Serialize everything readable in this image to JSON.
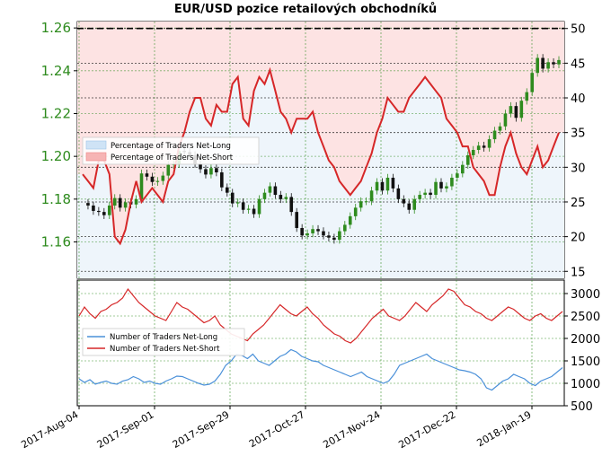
{
  "chart_data": [
    {
      "type": "candlestick",
      "title": "EUR/USD pozice retailových obchodníků",
      "x_ticks": [
        "2017-Aug-04",
        "2017-Sep-01",
        "2017-Sep-29",
        "2017-Oct-27",
        "2017-Nov-24",
        "2017-Dec-22",
        "2018-Jan-19"
      ],
      "y_left": {
        "ticks": [
          "1.16",
          "1.18",
          "1.20",
          "1.22",
          "1.24",
          "1.26"
        ],
        "range": [
          1.143,
          1.263
        ]
      },
      "y_right": {
        "ticks": [
          "15",
          "20",
          "25",
          "30",
          "35",
          "40",
          "45",
          "50"
        ],
        "range": [
          14,
          51
        ]
      },
      "grid": true,
      "reference_line": {
        "axis": "right",
        "value": 50,
        "style": "dashed"
      },
      "legend": {
        "placement": "center-left",
        "entries": [
          {
            "label": "Percentage of Traders Net-Long",
            "color": "#cfe3f6"
          },
          {
            "label": "Percentage of Traders Net-Short",
            "color": "#f6b4b4"
          }
        ]
      },
      "series": [
        {
          "name": "EUR/USD",
          "axis": "left",
          "close": [
            1.1782,
            1.177,
            1.1745,
            1.174,
            1.1725,
            1.177,
            1.1805,
            1.176,
            1.1785,
            1.1775,
            1.18,
            1.192,
            1.1905,
            1.188,
            1.1885,
            1.191,
            1.196,
            1.1965,
            1.2025,
            1.202,
            1.2005,
            1.1965,
            1.194,
            1.1915,
            1.1945,
            1.1925,
            1.1855,
            1.183,
            1.178,
            1.1785,
            1.175,
            1.1755,
            1.173,
            1.18,
            1.183,
            1.186,
            1.182,
            1.18,
            1.181,
            1.174,
            1.1665,
            1.163,
            1.164,
            1.166,
            1.165,
            1.163,
            1.162,
            1.161,
            1.165,
            1.168,
            1.172,
            1.176,
            1.179,
            1.179,
            1.184,
            1.188,
            1.184,
            1.19,
            1.185,
            1.18,
            1.178,
            1.175,
            1.18,
            1.182,
            1.183,
            1.182,
            1.188,
            1.185,
            1.186,
            1.19,
            1.192,
            1.196,
            1.2005,
            1.203,
            1.205,
            1.204,
            1.208,
            1.212,
            1.214,
            1.22,
            1.2235,
            1.218,
            1.226,
            1.23,
            1.239,
            1.246,
            1.241,
            1.244,
            1.243,
            1.245
          ],
          "short_pct": [
            29,
            28,
            27,
            31,
            31,
            29,
            20,
            19,
            21,
            25,
            28,
            25,
            26,
            27,
            26,
            25,
            28,
            29,
            33,
            35,
            38,
            40,
            40,
            37,
            36,
            39,
            38,
            38,
            42,
            43,
            37,
            36,
            41,
            43,
            42,
            44,
            41,
            38,
            37,
            35,
            37,
            37,
            37,
            38,
            35,
            33,
            31,
            30,
            28,
            27,
            26,
            27,
            28,
            30,
            32,
            35,
            37,
            40,
            39,
            38,
            38,
            40,
            41,
            42,
            43,
            42,
            41,
            40,
            37,
            36,
            35,
            33,
            33,
            30,
            29,
            28,
            26,
            26,
            30,
            33,
            35,
            32,
            30,
            29,
            31,
            33,
            30,
            31,
            33,
            35
          ]
        }
      ]
    },
    {
      "type": "line",
      "x_ticks": [
        "2017-Aug-04",
        "2017-Sep-01",
        "2017-Sep-29",
        "2017-Oct-27",
        "2017-Nov-24",
        "2017-Dec-22",
        "2018-Jan-19"
      ],
      "y_right": {
        "ticks": [
          "500",
          "1000",
          "1500",
          "2000",
          "2500",
          "3000"
        ],
        "range": [
          500,
          3300
        ]
      },
      "grid": true,
      "legend": {
        "placement": "center-left"
      },
      "series": [
        {
          "name": "Number of Traders Net-Long",
          "color": "#4a90d9",
          "values": [
            1100,
            1020,
            1080,
            980,
            1020,
            1050,
            1000,
            980,
            1050,
            1080,
            1150,
            1100,
            1020,
            1050,
            1000,
            980,
            1050,
            1100,
            1160,
            1150,
            1100,
            1050,
            1000,
            960,
            980,
            1050,
            1200,
            1400,
            1500,
            1650,
            1620,
            1550,
            1650,
            1500,
            1450,
            1400,
            1500,
            1600,
            1650,
            1750,
            1700,
            1600,
            1550,
            1500,
            1480,
            1400,
            1350,
            1300,
            1250,
            1200,
            1150,
            1200,
            1250,
            1150,
            1100,
            1050,
            1000,
            1050,
            1200,
            1400,
            1450,
            1500,
            1550,
            1600,
            1650,
            1550,
            1500,
            1450,
            1400,
            1350,
            1300,
            1280,
            1250,
            1200,
            1100,
            900,
            850,
            950,
            1050,
            1100,
            1200,
            1150,
            1100,
            1000,
            950,
            1050,
            1100,
            1150,
            1250,
            1350
          ],
          "notes": ""
        },
        {
          "name": "Number of Traders Net-Short",
          "color": "#d62728",
          "values": [
            2500,
            2700,
            2550,
            2450,
            2600,
            2650,
            2750,
            2800,
            2900,
            3100,
            2950,
            2800,
            2700,
            2600,
            2500,
            2450,
            2400,
            2600,
            2800,
            2700,
            2650,
            2550,
            2450,
            2350,
            2400,
            2500,
            2300,
            2200,
            2100,
            2050,
            2000,
            1950,
            2100,
            2200,
            2300,
            2450,
            2600,
            2750,
            2650,
            2550,
            2500,
            2600,
            2700,
            2550,
            2450,
            2300,
            2200,
            2100,
            2050,
            1950,
            1900,
            2000,
            2150,
            2300,
            2450,
            2550,
            2650,
            2500,
            2450,
            2400,
            2500,
            2650,
            2800,
            2700,
            2600,
            2750,
            2850,
            2950,
            3100,
            3050,
            2900,
            2750,
            2700,
            2600,
            2550,
            2450,
            2400,
            2500,
            2600,
            2700,
            2650,
            2550,
            2450,
            2400,
            2500,
            2550,
            2450,
            2400,
            2500,
            2600
          ]
        }
      ]
    }
  ]
}
